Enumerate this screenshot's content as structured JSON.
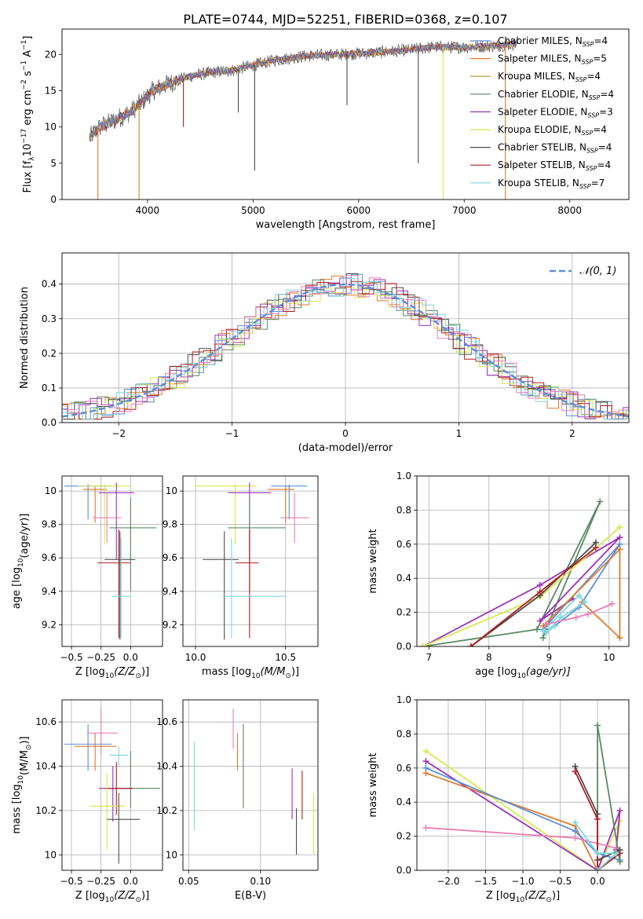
{
  "figure_title": "PLATE=0744, MJD=52251, FIBERID=0368, z=0.107",
  "chart_data": [
    {
      "id": "spectrum",
      "type": "line",
      "xlabel": "wavelength [Angstrom, rest frame]",
      "ylabel": "Flux [f",
      "ylabel_sub": "λ",
      "ylabel_tail": "10",
      "ylabel_exp1": "−17",
      "ylabel_mid": " erg cm",
      "ylabel_exp2": "−2",
      "ylabel_mid2": " s",
      "ylabel_exp3": "−1",
      "ylabel_end": " A",
      "ylabel_exp4": "−1",
      "ylabel_close": "]",
      "xlim": [
        3190,
        8560
      ],
      "ylim": [
        0,
        23.5
      ],
      "xticks": [
        4000,
        5000,
        6000,
        7000,
        8000
      ],
      "yticks": [
        0,
        5,
        10,
        15,
        20
      ],
      "grid": false,
      "legend_position": "upper-right",
      "continuum": {
        "x": [
          3450,
          3550,
          3700,
          3850,
          3950,
          4050,
          4200,
          4400,
          4600,
          4800,
          5000,
          5200,
          5500,
          5800,
          6100,
          6400,
          6700,
          7000,
          7300,
          7500
        ],
        "y": [
          8.5,
          10,
          11,
          12.2,
          13.5,
          15,
          16,
          17,
          17.5,
          17.8,
          18.5,
          19.2,
          19.8,
          20,
          20.2,
          20.5,
          21,
          21,
          21.2,
          21.5
        ]
      },
      "series": [
        {
          "name": "Chabrier MILES, N",
          "sub": "SSP",
          "nval": "=4",
          "color": "#5b8fd9"
        },
        {
          "name": "Salpeter MILES, N",
          "sub": "SSP",
          "nval": "=5",
          "color": "#e07b2e"
        },
        {
          "name": "Kroupa MILES, N",
          "sub": "SSP",
          "nval": "=4",
          "color": "#b8912a"
        },
        {
          "name": "Chabrier ELODIE, N",
          "sub": "SSP",
          "nval": "=4",
          "color": "#5a8a63"
        },
        {
          "name": "Salpeter ELODIE, N",
          "sub": "SSP",
          "nval": "=3",
          "color": "#9b32b8"
        },
        {
          "name": "Kroupa ELODIE, N",
          "sub": "SSP",
          "nval": "=4",
          "color": "#d6e84d"
        },
        {
          "name": "Chabrier STELIB, N",
          "sub": "SSP",
          "nval": "=4",
          "color": "#4d4d4d"
        },
        {
          "name": "Salpeter STELIB, N",
          "sub": "SSP",
          "nval": "=4",
          "color": "#b01f1f"
        },
        {
          "name": "Kroupa STELIB, N",
          "sub": "SSP",
          "nval": "=7",
          "color": "#7fd8de"
        }
      ]
    },
    {
      "id": "residuals",
      "type": "histogram",
      "xlabel": "(data-model)/error",
      "ylabel": "Normed distribution",
      "xlim": [
        -2.5,
        2.5
      ],
      "ylim": [
        0,
        0.49
      ],
      "xticks": [
        -2,
        -1,
        0,
        1,
        2
      ],
      "xticklabels": [
        "−2",
        "−1",
        "0",
        "1",
        "2"
      ],
      "yticks": [
        0,
        0.1,
        0.2,
        0.3,
        0.4
      ],
      "yticklabels": [
        "0.0",
        "0.1",
        "0.2",
        "0.3",
        "0.4"
      ],
      "grid": true,
      "legend": "𝒩(0, 1)",
      "legend_position": "upper-right",
      "gauss_color": "#5b8fd9",
      "bin_width": 0.1,
      "hist_colors": [
        "#5b8fd9",
        "#e07b2e",
        "#5a8a63",
        "#9b32b8",
        "#d6e84d",
        "#4d4d4d",
        "#b01f1f",
        "#7fd8de",
        "#e87fb8"
      ]
    },
    {
      "id": "age-vs-Z",
      "type": "errorbar",
      "xlabel": "Z [log",
      "xlabel_sub": "10",
      "xlabel_end": "(Z/Z",
      "xlabel_sun": "⊙",
      "xlabel_close": ")]",
      "ylabel": "age  [log",
      "ylabel_sub": "10",
      "ylabel_end": "(age/yr)]",
      "xlim": [
        -0.58,
        0.27
      ],
      "ylim": [
        9.07,
        10.09
      ],
      "xticks": [
        -0.5,
        -0.25,
        0.0
      ],
      "xticklabels": [
        "−0.5",
        "−0.25",
        "0.0"
      ],
      "yticks": [
        9.2,
        9.4,
        9.6,
        9.8,
        10.0
      ],
      "grid": true,
      "points": [
        {
          "x": -0.36,
          "xerr": [
            0.2,
            0.2
          ],
          "y": 10.03,
          "yerr": [
            0.2,
            0.01
          ],
          "color": "#5b8fd9"
        },
        {
          "x": -0.3,
          "xerr": [
            0.1,
            0.1
          ],
          "y": 10.01,
          "yerr": [
            0.2,
            0.02
          ],
          "color": "#e07b2e"
        },
        {
          "x": -0.22,
          "xerr": [
            0.22,
            0.22
          ],
          "y": 10.03,
          "yerr": [
            0.35,
            0.01
          ],
          "color": "#d6e84d"
        },
        {
          "x": -0.12,
          "xerr": [
            0.15,
            0.15
          ],
          "y": 9.99,
          "yerr": [
            0.4,
            0.06
          ],
          "color": "#9b32b8"
        },
        {
          "x": -0.2,
          "xerr": [
            0.12,
            0.12
          ],
          "y": 9.84,
          "yerr": [
            0.15,
            0.15
          ],
          "color": "#e87fb8"
        },
        {
          "x": 0.0,
          "xerr": [
            0.18,
            0.22
          ],
          "y": 9.78,
          "yerr": [
            0.38,
            0.18
          ],
          "color": "#5a8a63"
        },
        {
          "x": -0.09,
          "xerr": [
            0.13,
            0.13
          ],
          "y": 9.59,
          "yerr": [
            0.48,
            0.17
          ],
          "color": "#4d4d4d"
        },
        {
          "x": -0.1,
          "xerr": [
            0.18,
            0.1
          ],
          "y": 9.57,
          "yerr": [
            0.45,
            0.2
          ],
          "color": "#b01f1f"
        },
        {
          "x": -0.08,
          "xerr": [
            0.08,
            0.08
          ],
          "y": 9.37,
          "yerr": [
            0.25,
            0.35
          ],
          "color": "#7fd8de"
        }
      ]
    },
    {
      "id": "age-vs-mass",
      "type": "errorbar",
      "xlabel": "mass [log",
      "xlabel_sub": "10",
      "xlabel_end": "(M/M",
      "xlabel_sun": "⊙",
      "xlabel_close": ")]",
      "xlim": [
        9.93,
        10.68
      ],
      "ylim": [
        9.07,
        10.09
      ],
      "xticks": [
        10.0,
        10.5
      ],
      "xticklabels": [
        "10.0",
        "10.5"
      ],
      "yticks": [
        9.2,
        9.4,
        9.6,
        9.8,
        10.0
      ],
      "grid": true,
      "points": [
        {
          "x": 10.52,
          "xerr": [
            0.1,
            0.1
          ],
          "y": 10.03,
          "yerr": [
            0.2,
            0.01
          ],
          "color": "#5b8fd9"
        },
        {
          "x": 10.5,
          "xerr": [
            0.1,
            0.05
          ],
          "y": 10.01,
          "yerr": [
            0.2,
            0.02
          ],
          "color": "#e07b2e"
        },
        {
          "x": 10.22,
          "xerr": [
            0.22,
            0.12
          ],
          "y": 10.03,
          "yerr": [
            0.35,
            0.01
          ],
          "color": "#d6e84d"
        },
        {
          "x": 10.3,
          "xerr": [
            0.12,
            0.12
          ],
          "y": 9.99,
          "yerr": [
            0.4,
            0.06
          ],
          "color": "#9b32b8"
        },
        {
          "x": 10.55,
          "xerr": [
            0.08,
            0.08
          ],
          "y": 9.84,
          "yerr": [
            0.15,
            0.15
          ],
          "color": "#e87fb8"
        },
        {
          "x": 10.3,
          "xerr": [
            0.12,
            0.2
          ],
          "y": 9.78,
          "yerr": [
            0.38,
            0.18
          ],
          "color": "#5a8a63"
        },
        {
          "x": 10.16,
          "xerr": [
            0.12,
            0.08
          ],
          "y": 9.59,
          "yerr": [
            0.48,
            0.17
          ],
          "color": "#4d4d4d"
        },
        {
          "x": 10.3,
          "xerr": [
            0.08,
            0.05
          ],
          "y": 9.57,
          "yerr": [
            0.45,
            0.2
          ],
          "color": "#b01f1f"
        },
        {
          "x": 10.2,
          "xerr": [
            0.05,
            0.3
          ],
          "y": 9.37,
          "yerr": [
            0.25,
            0.35
          ],
          "color": "#7fd8de"
        }
      ]
    },
    {
      "id": "weight-vs-age",
      "type": "line",
      "xlabel": "age  [log",
      "xlabel_sub": "10",
      "xlabel_end": "(age/yr)]",
      "ylabel": "mass weight",
      "xlim": [
        6.8,
        10.33
      ],
      "ylim": [
        0,
        1
      ],
      "xticks": [
        7,
        8,
        9,
        10
      ],
      "yticks": [
        0,
        0.2,
        0.4,
        0.6,
        0.8,
        1.0
      ],
      "yticklabels": [
        "0.0",
        "0.2",
        "0.4",
        "0.6",
        "0.8",
        "1.0"
      ],
      "grid": true,
      "series": [
        {
          "color": "#5a8a63",
          "x": [
            6.9,
            8.8,
            9.85,
            8.95,
            8.9
          ],
          "y": [
            0.0,
            0.1,
            0.85,
            0.1,
            0.05
          ]
        },
        {
          "color": "#9b32b8",
          "x": [
            6.9,
            8.85,
            10.18,
            8.85,
            9.4
          ],
          "y": [
            0.0,
            0.36,
            0.64,
            0.15,
            0.28
          ]
        },
        {
          "color": "#d6e84d",
          "x": [
            6.9,
            8.85,
            10.18
          ],
          "y": [
            0.0,
            0.29,
            0.7
          ]
        },
        {
          "color": "#4d4d4d",
          "x": [
            7.7,
            8.85,
            9.78
          ],
          "y": [
            0.0,
            0.3,
            0.61
          ]
        },
        {
          "color": "#b01f1f",
          "x": [
            7.7,
            8.85,
            9.78
          ],
          "y": [
            0.0,
            0.32,
            0.58
          ]
        },
        {
          "color": "#5b8fd9",
          "x": [
            8.9,
            10.18,
            9.5,
            8.95
          ],
          "y": [
            0.1,
            0.6,
            0.23,
            0.08
          ]
        },
        {
          "color": "#e07b2e",
          "x": [
            8.9,
            10.18,
            10.18,
            9.55
          ],
          "y": [
            0.12,
            0.57,
            0.05,
            0.26
          ]
        },
        {
          "color": "#7fd8de",
          "x": [
            8.9,
            9.5,
            9.6,
            9.2,
            8.95,
            9.1
          ],
          "y": [
            0.09,
            0.3,
            0.26,
            0.17,
            0.08,
            0.12
          ]
        },
        {
          "color": "#e87fb8",
          "x": [
            8.95,
            9.45,
            9.65,
            10.05
          ],
          "y": [
            0.13,
            0.17,
            0.19,
            0.25
          ]
        }
      ]
    },
    {
      "id": "mass-vs-Z",
      "type": "errorbar",
      "xlabel": "Z [log",
      "xlabel_sub": "10",
      "xlabel_end": "(Z/Z",
      "xlabel_sun": "⊙",
      "xlabel_close": ")]",
      "ylabel": "mass [log",
      "ylabel_sub": "10",
      "ylabel_end": "(M/M",
      "ylabel_sun": "⊙",
      "ylabel_close": ")]",
      "xlim": [
        -0.58,
        0.27
      ],
      "ylim": [
        9.93,
        10.7
      ],
      "xticks": [
        -0.5,
        -0.25,
        0.0
      ],
      "xticklabels": [
        "−0.5",
        "−0.25",
        "0.0"
      ],
      "yticks": [
        10.0,
        10.2,
        10.4,
        10.6
      ],
      "grid": true,
      "points": [
        {
          "x": -0.36,
          "xerr": [
            0.2,
            0.2
          ],
          "y": 10.5,
          "yerr": [
            0.12,
            0.09
          ],
          "color": "#5b8fd9"
        },
        {
          "x": -0.3,
          "xerr": [
            0.18,
            0.18
          ],
          "y": 10.49,
          "yerr": [
            0.11,
            0.06
          ],
          "color": "#e07b2e"
        },
        {
          "x": -0.25,
          "xerr": [
            0.12,
            0.14
          ],
          "y": 10.55,
          "yerr": [
            0.1,
            0.11
          ],
          "color": "#e87fb8"
        },
        {
          "x": -0.1,
          "xerr": [
            0.08,
            0.08
          ],
          "y": 10.45,
          "yerr": [
            0.05,
            0.04
          ],
          "color": "#7fd8de"
        },
        {
          "x": 0.0,
          "xerr": [
            0.18,
            0.25
          ],
          "y": 10.3,
          "yerr": [
            0.09,
            0.17
          ],
          "color": "#5a8a63"
        },
        {
          "x": -0.15,
          "xerr": [
            0.12,
            0.15
          ],
          "y": 10.3,
          "yerr": [
            0.15,
            0.1
          ],
          "color": "#9b32b8"
        },
        {
          "x": -0.12,
          "xerr": [
            0.1,
            0.14
          ],
          "y": 10.3,
          "yerr": [
            0.12,
            0.12
          ],
          "color": "#b01f1f"
        },
        {
          "x": -0.2,
          "xerr": [
            0.15,
            0.15
          ],
          "y": 10.22,
          "yerr": [
            0.2,
            0.15
          ],
          "color": "#d6e84d"
        },
        {
          "x": -0.1,
          "xerr": [
            0.1,
            0.18
          ],
          "y": 10.16,
          "yerr": [
            0.2,
            0.12
          ],
          "color": "#4d4d4d"
        }
      ]
    },
    {
      "id": "mass-vs-EBV",
      "type": "errorbar",
      "xlabel": "E(B-V)",
      "xlim": [
        0.046,
        0.14
      ],
      "ylim": [
        9.93,
        10.7
      ],
      "xticks": [
        0.05,
        0.1
      ],
      "xticklabels": [
        "0.05",
        "0.10"
      ],
      "yticks": [
        10.0,
        10.2,
        10.4,
        10.6
      ],
      "grid": true,
      "points": [
        {
          "x": 0.054,
          "y": 10.31,
          "yerr": [
            0.2,
            0.2
          ],
          "color": "#7fd8de"
        },
        {
          "x": 0.081,
          "y": 10.54,
          "yerr": [
            0.06,
            0.12
          ],
          "color": "#e87fb8"
        },
        {
          "x": 0.084,
          "y": 10.44,
          "yerr": [
            0.06,
            0.11
          ],
          "color": "#e07b2e"
        },
        {
          "x": 0.088,
          "y": 10.4,
          "yerr": [
            0.19,
            0.19
          ],
          "color": "#5a8a63"
        },
        {
          "x": 0.122,
          "y": 10.27,
          "yerr": [
            0.11,
            0.12
          ],
          "color": "#9b32b8"
        },
        {
          "x": 0.125,
          "y": 10.11,
          "yerr": [
            0.11,
            0.1
          ],
          "color": "#4d4d4d"
        },
        {
          "x": 0.129,
          "y": 10.26,
          "yerr": [
            0.1,
            0.12
          ],
          "color": "#b01f1f"
        },
        {
          "x": 0.137,
          "y": 10.13,
          "yerr": [
            0.13,
            0.15
          ],
          "color": "#d6e84d"
        }
      ]
    },
    {
      "id": "weight-vs-Z",
      "type": "line",
      "xlabel": "Z [log",
      "xlabel_sub": "10",
      "xlabel_end": "(Z/Z",
      "xlabel_sun": "⊙",
      "xlabel_close": ")]",
      "ylabel": "mass weight",
      "xlim": [
        -2.42,
        0.42
      ],
      "ylim": [
        0,
        1
      ],
      "xticks": [
        -2.0,
        -1.5,
        -1.0,
        -0.5,
        0.0
      ],
      "xticklabels": [
        "−2.0",
        "−1.5",
        "−1.0",
        "−0.5",
        "0.0"
      ],
      "yticks": [
        0,
        0.2,
        0.4,
        0.6,
        0.8,
        1.0
      ],
      "yticklabels": [
        "0.0",
        "0.2",
        "0.4",
        "0.6",
        "0.8",
        "1.0"
      ],
      "grid": true,
      "series": [
        {
          "color": "#d6e84d",
          "x": [
            -2.3,
            0.0,
            0.3,
            0.25
          ],
          "y": [
            0.7,
            0.0,
            0.29,
            0.12
          ]
        },
        {
          "color": "#9b32b8",
          "x": [
            -2.3,
            0.0,
            0.3,
            0.25
          ],
          "y": [
            0.64,
            0.0,
            0.35,
            0.12
          ]
        },
        {
          "color": "#e07b2e",
          "x": [
            -2.3,
            -0.3,
            0.0,
            0.3
          ],
          "y": [
            0.57,
            0.26,
            0.0,
            0.1
          ]
        },
        {
          "color": "#5b8fd9",
          "x": [
            -2.3,
            -0.3,
            0.0,
            0.3
          ],
          "y": [
            0.6,
            0.23,
            0.1,
            0.06
          ]
        },
        {
          "color": "#e87fb8",
          "x": [
            -2.3,
            -0.3,
            0.25
          ],
          "y": [
            0.25,
            0.19,
            0.13
          ]
        },
        {
          "color": "#5a8a63",
          "x": [
            0.0,
            0.0,
            0.3,
            0.3
          ],
          "y": [
            0.0,
            0.85,
            0.05,
            0.1
          ]
        },
        {
          "color": "#4d4d4d",
          "x": [
            -0.3,
            0.0,
            0.0,
            0.3
          ],
          "y": [
            0.61,
            0.33,
            0.06,
            0.12
          ]
        },
        {
          "color": "#b01f1f",
          "x": [
            -0.3,
            0.0,
            0.0,
            0.3
          ],
          "y": [
            0.58,
            0.3,
            0.0,
            0.1
          ]
        },
        {
          "color": "#7fd8de",
          "x": [
            -0.3,
            0.0,
            0.25,
            0.0
          ],
          "y": [
            0.28,
            0.1,
            0.1,
            0.0
          ]
        }
      ]
    }
  ]
}
